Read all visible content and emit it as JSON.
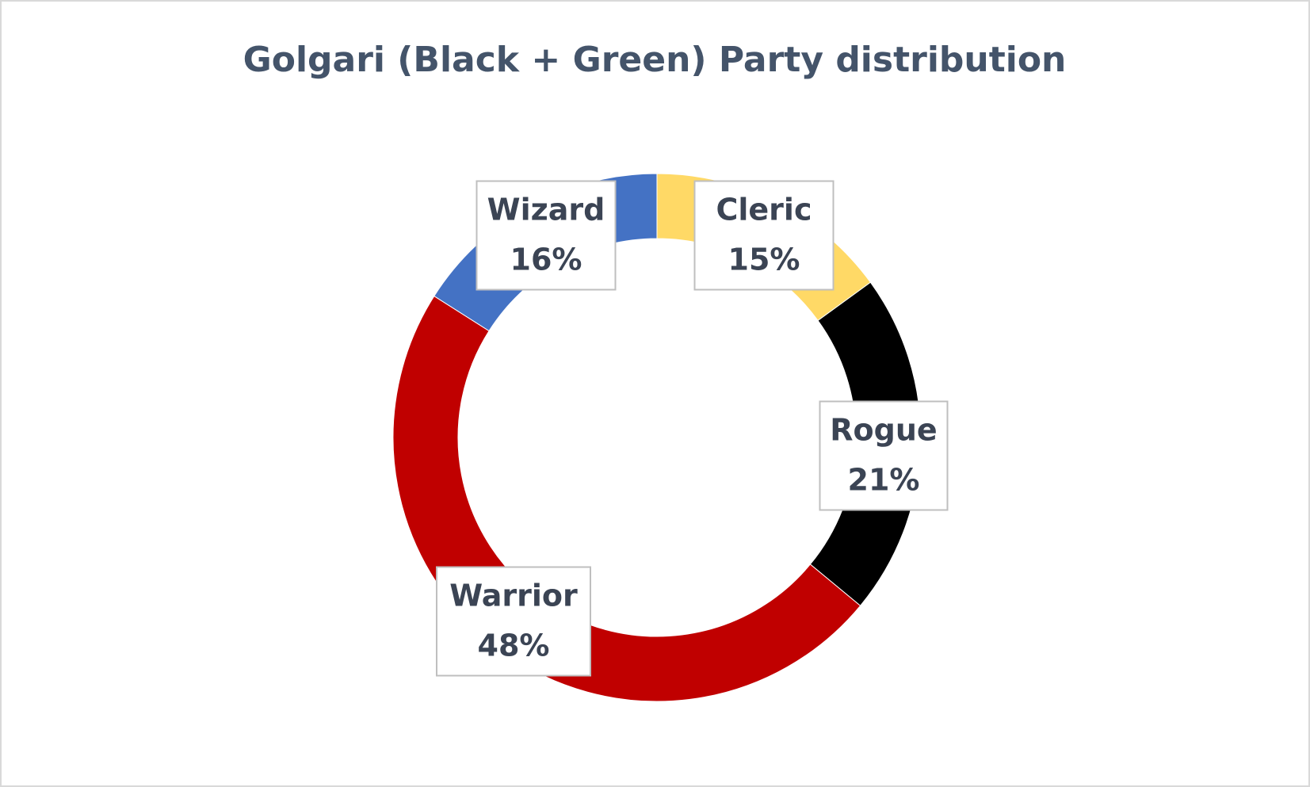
{
  "chart_data": {
    "type": "doughnut",
    "title": "Golgari (Black + Green) Party distribution",
    "categories": [
      "Cleric",
      "Rogue",
      "Warrior",
      "Wizard"
    ],
    "values": [
      15,
      21,
      48,
      16
    ],
    "value_labels": [
      "15%",
      "21%",
      "48%",
      "16%"
    ],
    "colors": [
      "#FFD966",
      "#000000",
      "#C00000",
      "#4472C4"
    ]
  }
}
